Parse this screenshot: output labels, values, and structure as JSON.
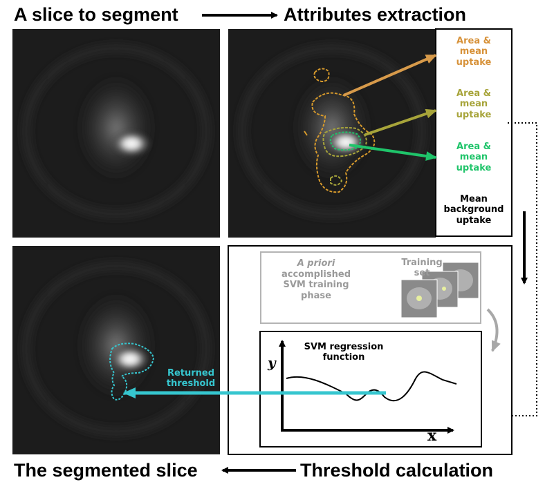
{
  "titles": {
    "slice_to_segment": "A slice to segment",
    "attributes_extraction": "Attributes extraction",
    "segmented_slice": "The segmented slice",
    "threshold_calculation": "Threshold calculation"
  },
  "attributes": {
    "item1": "Area &\nmean\nuptake",
    "item2": "Area &\nmean\nuptake",
    "item3": "Area &\nmean\nuptake",
    "item4": "Mean\nbackground\nuptake"
  },
  "training": {
    "a_priori": "A priori",
    "phase_rest": "accomplished\nSVM training\nphase",
    "training_set": "Training\nset"
  },
  "svm": {
    "function_label": "SVM regression\nfunction",
    "y_axis": "y",
    "x_axis": "x"
  },
  "returned_threshold": "Returned\nthreshold",
  "colors": {
    "contour_outer": "#d79a2c",
    "contour_mid": "#a7a43a",
    "contour_inner": "#1fc46a",
    "contour_result": "#36c6cf",
    "label_gray": "#9a9a9a"
  }
}
